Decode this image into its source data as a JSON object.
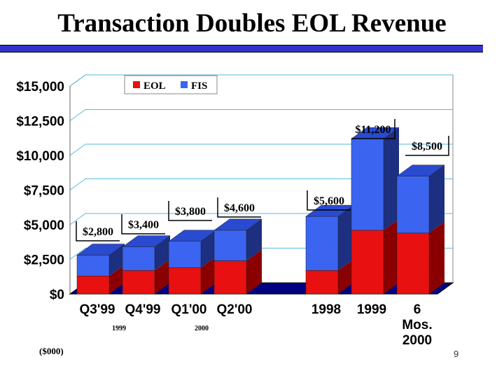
{
  "slide": {
    "title": "Transaction Doubles EOL Revenue",
    "units_note": "($000)",
    "page_number": "9",
    "period_notes": [
      "1999",
      "2000"
    ]
  },
  "colors": {
    "eol_front": "#e81010",
    "eol_side": "#8a0000",
    "fis_front": "#3b64f0",
    "fis_side": "#1d2f80",
    "top": "#2a4ad0",
    "floor": "#000080",
    "grid": "#55bbdd",
    "accent_rule": "#3333cc"
  },
  "chart_data": {
    "type": "bar",
    "stacked": true,
    "three_d": true,
    "categories": [
      "Q3'99",
      "Q4'99",
      "Q1'00",
      "Q2'00",
      "1998",
      "1999",
      "6\nMos.\n2000"
    ],
    "series": [
      {
        "name": "EOL",
        "values": [
          1300,
          1700,
          1900,
          2400,
          1700,
          4600,
          4400
        ]
      },
      {
        "name": "FIS",
        "values": [
          1500,
          1700,
          1900,
          2200,
          3900,
          6600,
          4100
        ]
      }
    ],
    "totals_labels": [
      "$2,800",
      "$3,400",
      "$3,800",
      "$4,600",
      "$5,600",
      "$11,200",
      "$8,500"
    ],
    "y_ticks": [
      "$0",
      "$2,500",
      "$5,000",
      "$7,500",
      "$10,000",
      "$12,500",
      "$15,000"
    ],
    "ylim": [
      0,
      15000
    ],
    "grid": true,
    "legend_position": "top-left"
  }
}
